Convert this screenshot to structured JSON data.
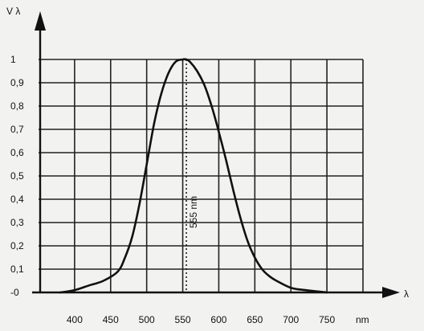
{
  "chart_data": {
    "type": "line",
    "ylabel": "V λ",
    "xlabel": "λ",
    "x_unit": "nm",
    "xlim": [
      350,
      800
    ],
    "ylim": [
      0,
      1
    ],
    "grid": true,
    "x_ticks": [
      "400",
      "450",
      "500",
      "550",
      "600",
      "650",
      "700",
      "750"
    ],
    "y_ticks": [
      "-0",
      "0,1",
      "0,2",
      "0,3",
      "0,4",
      "0,5",
      "0,6",
      "0,7",
      "0,8",
      "0,9",
      "1"
    ],
    "peak": {
      "x": 555,
      "label": "555 nm"
    },
    "series": [
      {
        "x": [
          380,
          400,
          420,
          440,
          460,
          470,
          480,
          490,
          500,
          510,
          520,
          530,
          540,
          550,
          555,
          560,
          570,
          580,
          590,
          600,
          610,
          620,
          630,
          640,
          650,
          660,
          670,
          680,
          700,
          720,
          750
        ],
        "values": [
          0.0,
          0.01,
          0.03,
          0.05,
          0.09,
          0.15,
          0.24,
          0.38,
          0.55,
          0.72,
          0.85,
          0.94,
          0.99,
          1.0,
          1.0,
          0.99,
          0.95,
          0.89,
          0.8,
          0.69,
          0.57,
          0.44,
          0.32,
          0.22,
          0.15,
          0.1,
          0.07,
          0.05,
          0.02,
          0.01,
          0.0
        ]
      }
    ],
    "colors": {
      "line": "#111111",
      "grid": "#222222",
      "background": "#f2f3f1"
    }
  }
}
